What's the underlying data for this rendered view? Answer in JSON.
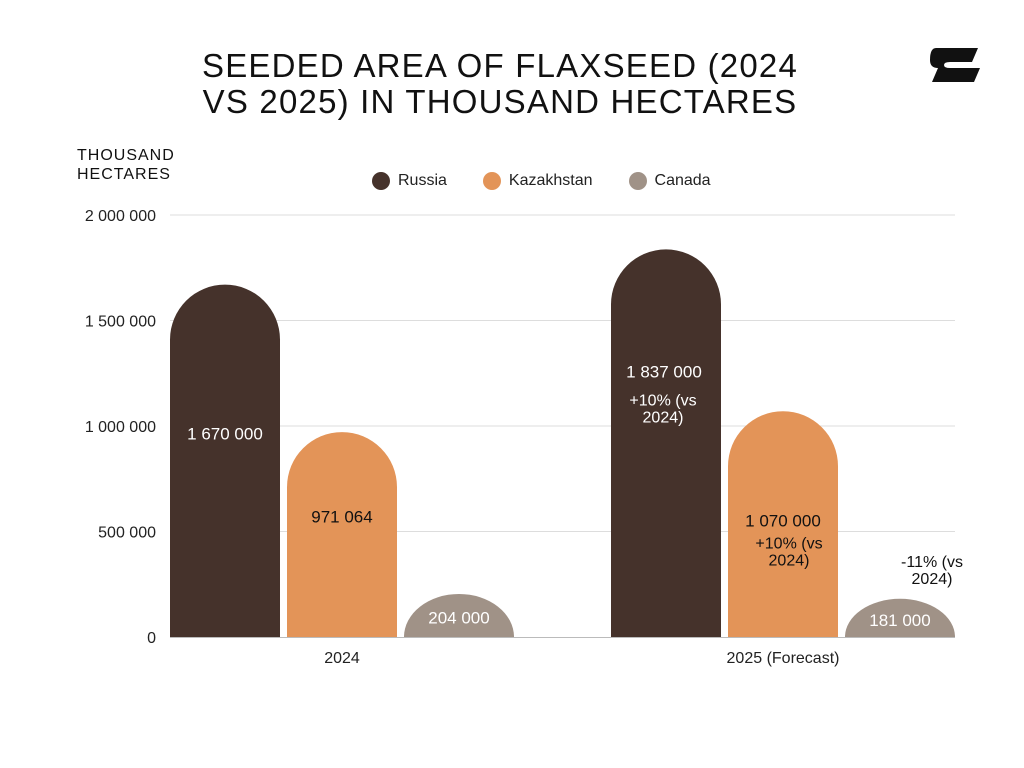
{
  "chart_data": {
    "type": "bar",
    "title": "SEEDED AREA OF FLAXSEED (2024 VS 2025) IN THOUSAND HECTARES",
    "ylabel": "THOUSAND HECTARES",
    "xlabel": "",
    "categories": [
      "2024",
      "2025 (Forecast)"
    ],
    "series": [
      {
        "name": "Russia",
        "color": "#45322b",
        "label_color": "#ffffff",
        "values": [
          1670000,
          1837000
        ],
        "labels": [
          "1 670 000",
          "1 837 000"
        ],
        "notes": [
          "",
          "+10% (vs 2024)"
        ]
      },
      {
        "name": "Kazakhstan",
        "color": "#e39458",
        "label_color": "#111111",
        "values": [
          971064,
          1070000
        ],
        "labels": [
          "971 064",
          "1 070 000"
        ],
        "notes": [
          "",
          "+10% (vs 2024)"
        ]
      },
      {
        "name": "Canada",
        "color": "#a09287",
        "label_color": "#ffffff",
        "values": [
          204000,
          181000
        ],
        "labels": [
          "204 000",
          "181 000"
        ],
        "notes": [
          "",
          "-11% (vs 2024)"
        ]
      }
    ],
    "ylim": [
      0,
      2000000
    ],
    "yticks": [
      0,
      500000,
      1000000,
      1500000,
      2000000
    ],
    "ytick_labels": [
      "0",
      "500 000",
      "1 000 000",
      "1 500 000",
      "2 000 000"
    ],
    "grid": true,
    "legend_position": "top-center"
  },
  "colors": {
    "grid": "#dddddd",
    "axis": "#bbbbbb",
    "tick_text": "#222222",
    "note_text": "#111111"
  },
  "logo": {
    "icon": "brand-logo-icon",
    "color": "#111111"
  }
}
